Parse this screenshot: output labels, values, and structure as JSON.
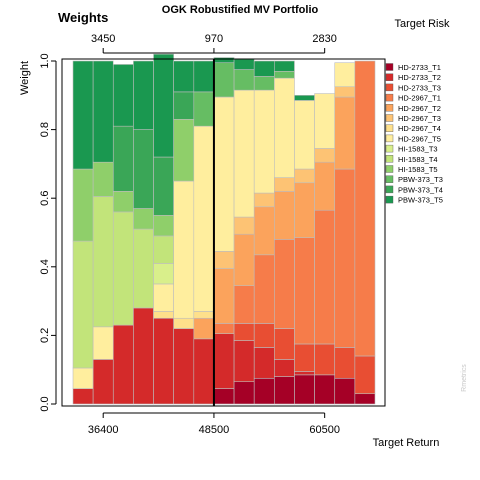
{
  "chart_data": {
    "type": "bar",
    "stacked": true,
    "title": "OGK Robustified MV Portfolio",
    "top_left_label": "Weights",
    "ylabel": "Weight",
    "xlabel": "Target Return",
    "top_axis_label": "Target Risk",
    "watermark": "Rmetrics",
    "ylim": [
      0,
      1
    ],
    "y_ticks": [
      "0.0",
      "0.2",
      "0.4",
      "0.6",
      "0.8",
      "1.0"
    ],
    "x_ticks_bottom": [
      {
        "label": "36400",
        "bar_index": 1
      },
      {
        "label": "48500",
        "bar_index": 6.5
      },
      {
        "label": "60500",
        "bar_index": 12
      }
    ],
    "x_ticks_top": [
      {
        "label": "3450",
        "bar_index": 1
      },
      {
        "label": "970",
        "bar_index": 6.5
      },
      {
        "label": "2830",
        "bar_index": 12
      }
    ],
    "min_variance_line_index": 6.5,
    "n_bars": 15,
    "series": [
      {
        "name": "HD-2733_T1",
        "color": "#a50026",
        "values": [
          0,
          0,
          0,
          0,
          0,
          0,
          0,
          0.045,
          0.065,
          0.075,
          0.08,
          0.085,
          0.085,
          0.075,
          0.03
        ]
      },
      {
        "name": "HD-2733_T2",
        "color": "#d42a2a",
        "values": [
          0.045,
          0.13,
          0.23,
          0.28,
          0.25,
          0.22,
          0.19,
          0.16,
          0.12,
          0.09,
          0.05,
          0.01,
          0,
          0,
          0
        ]
      },
      {
        "name": "HD-2733_T3",
        "color": "#e84e33",
        "values": [
          0,
          0,
          0,
          0,
          0,
          0,
          0,
          0,
          0.05,
          0.07,
          0.09,
          0.08,
          0.09,
          0.09,
          0.11
        ]
      },
      {
        "name": "HD-2967_T1",
        "color": "#f67c4a",
        "values": [
          0,
          0,
          0,
          0,
          0,
          0,
          0,
          0.03,
          0.11,
          0.2,
          0.26,
          0.31,
          0.39,
          0.52,
          0.86
        ]
      },
      {
        "name": "HD-2967_T2",
        "color": "#fba35c",
        "values": [
          0,
          0,
          0,
          0,
          0,
          0,
          0.06,
          0.16,
          0.15,
          0.14,
          0.14,
          0.16,
          0.14,
          0.21,
          0
        ]
      },
      {
        "name": "HD-2967_T3",
        "color": "#fdc374",
        "values": [
          0,
          0,
          0,
          0,
          0,
          0,
          0,
          0.05,
          0.05,
          0.04,
          0.04,
          0.04,
          0.04,
          0.03,
          0
        ]
      },
      {
        "name": "HD-2967_T4",
        "color": "#fee08b",
        "values": [
          0,
          0,
          0,
          0,
          0.02,
          0.03,
          0.02,
          0,
          0,
          0,
          0,
          0,
          0,
          0,
          0
        ]
      },
      {
        "name": "HD-2967_T5",
        "color": "#ffee9e",
        "values": [
          0.06,
          0.095,
          0,
          0,
          0.08,
          0.4,
          0.54,
          0.45,
          0.37,
          0.3,
          0.29,
          0.2,
          0.16,
          0.07,
          0
        ]
      },
      {
        "name": "HI-1583_T3",
        "color": "#d9ef8b",
        "values": [
          0,
          0,
          0,
          0,
          0.06,
          0,
          0,
          0,
          0,
          0,
          0,
          0,
          0,
          0,
          0
        ]
      },
      {
        "name": "HI-1583_T4",
        "color": "#c2e47a",
        "values": [
          0.37,
          0.38,
          0.33,
          0.23,
          0.08,
          0,
          0,
          0,
          0,
          0,
          0,
          0,
          0,
          0,
          0
        ]
      },
      {
        "name": "HI-1583_T5",
        "color": "#8fcf6a",
        "values": [
          0.21,
          0.1,
          0.06,
          0.06,
          0.06,
          0.18,
          0,
          0,
          0,
          0,
          0,
          0,
          0,
          0,
          0
        ]
      },
      {
        "name": "PBW-373_T3",
        "color": "#66bd63",
        "values": [
          0,
          0,
          0,
          0,
          0,
          0,
          0.1,
          0.1,
          0.06,
          0.04,
          0.02,
          0,
          0,
          0,
          0
        ]
      },
      {
        "name": "PBW-373_T4",
        "color": "#3aa657",
        "values": [
          0,
          0,
          0.19,
          0.23,
          0.17,
          0.08,
          0,
          0,
          0,
          0,
          0,
          0,
          0,
          0,
          0
        ]
      },
      {
        "name": "PBW-373_T5",
        "color": "#1a9850",
        "values": [
          0.315,
          0.295,
          0.18,
          0.2,
          0.3,
          0.09,
          0.09,
          0.015,
          0.03,
          0.045,
          0.03,
          0.015,
          0,
          0,
          0
        ]
      }
    ]
  }
}
